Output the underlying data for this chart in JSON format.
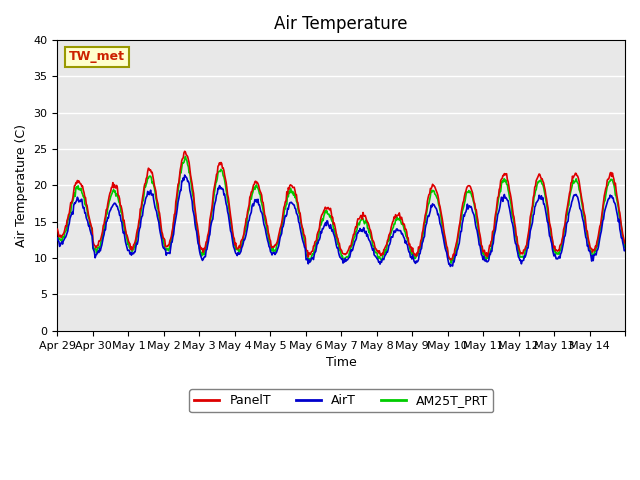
{
  "title": "Air Temperature",
  "xlabel": "Time",
  "ylabel": "Air Temperature (C)",
  "ylim": [
    0,
    40
  ],
  "yticks": [
    0,
    5,
    10,
    15,
    20,
    25,
    30,
    35,
    40
  ],
  "bg_color": "#e8e8e8",
  "fig_color": "#ffffff",
  "annotation_text": "TW_met",
  "annotation_color": "#cc2200",
  "annotation_bg": "#ffffcc",
  "annotation_border": "#999900",
  "line_colors": {
    "PanelT": "#dd0000",
    "AirT": "#0000cc",
    "AM25T_PRT": "#00cc00"
  },
  "legend_labels": [
    "PanelT",
    "AirT",
    "AM25T_PRT"
  ],
  "x_tick_labels": [
    "Apr 29",
    "Apr 30",
    "May 1",
    "May 2",
    "May 3",
    "May 4",
    "May 5",
    "May 6",
    "May 7",
    "May 8",
    "May 9",
    "May 10",
    "May 11",
    "May 12",
    "May 13",
    "May 14",
    ""
  ],
  "n_days": 16,
  "points_per_day": 48
}
